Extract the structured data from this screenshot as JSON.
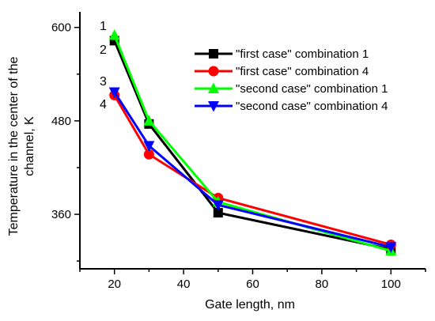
{
  "chart_data": {
    "type": "line",
    "xlabel": "Gate length, nm",
    "ylabel_lines": [
      "Temperature in the center of the",
      "channel, K"
    ],
    "xlim": [
      10,
      110
    ],
    "ylim": [
      290,
      620
    ],
    "xticks": [
      20,
      40,
      60,
      80,
      100
    ],
    "xtick_labels": [
      "20",
      "40",
      "60",
      "80",
      "100"
    ],
    "yticks": [
      360,
      480,
      600
    ],
    "ytick_labels": [
      "360",
      "480",
      "600"
    ],
    "legend_position": "top-right",
    "series": [
      {
        "name": "\"first case\" combination 1",
        "color": "#000000",
        "marker": "square",
        "x": [
          20,
          30,
          50,
          100
        ],
        "y": [
          583,
          476,
          362,
          315
        ]
      },
      {
        "name": "\"first case\" combination 4",
        "color": "#ff0000",
        "marker": "circle",
        "x": [
          20,
          30,
          50,
          100
        ],
        "y": [
          513,
          437,
          381,
          321
        ]
      },
      {
        "name": "\"second case\" combination 1",
        "color": "#00ff00",
        "marker": "triangle-up",
        "x": [
          20,
          30,
          50,
          100
        ],
        "y": [
          590,
          480,
          376,
          313
        ]
      },
      {
        "name": "\"second case\" combination 4",
        "color": "#0000ff",
        "marker": "triangle-down",
        "x": [
          20,
          30,
          50,
          100
        ],
        "y": [
          517,
          448,
          372,
          318
        ]
      }
    ],
    "annotations": [
      "1",
      "2",
      "3",
      "4"
    ]
  }
}
